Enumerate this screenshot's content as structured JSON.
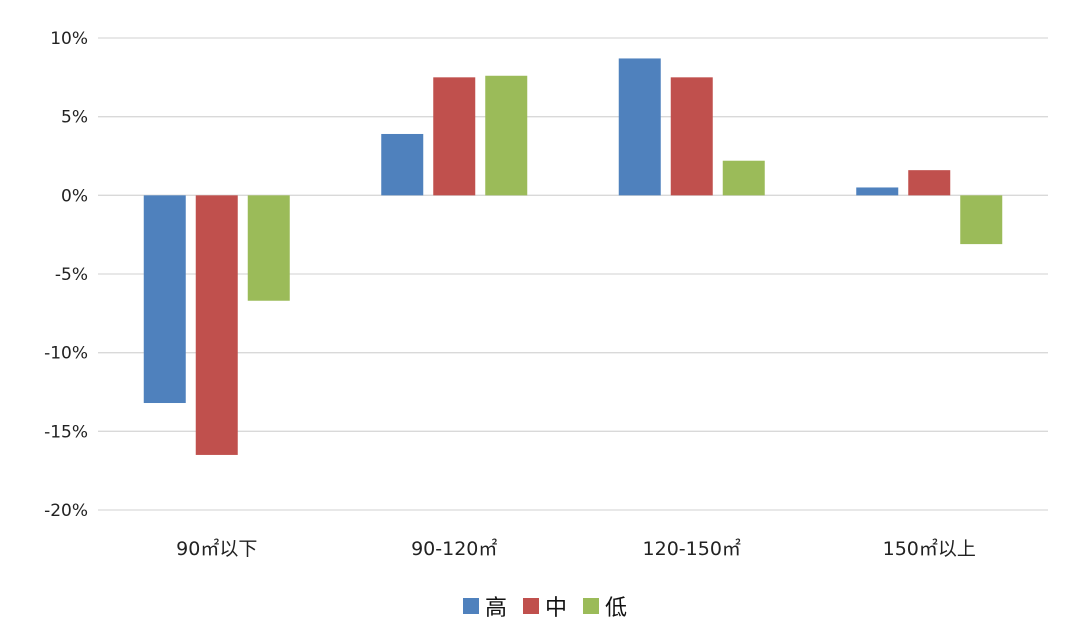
{
  "chart_data": {
    "type": "bar",
    "categories": [
      "90㎡以下",
      "90-120㎡",
      "120-150㎡",
      "150㎡以上"
    ],
    "series": [
      {
        "name": "高",
        "color": "#4f81bd",
        "values": [
          -13.2,
          3.9,
          8.7,
          0.5
        ]
      },
      {
        "name": "中",
        "color": "#c0504d",
        "values": [
          -16.5,
          7.5,
          7.5,
          1.6
        ]
      },
      {
        "name": "低",
        "color": "#9bbb59",
        "values": [
          -6.7,
          7.6,
          2.2,
          -3.1
        ]
      }
    ],
    "ylim": [
      -20,
      10
    ],
    "yticks": [
      10,
      5,
      0,
      -5,
      -10,
      -15,
      -20
    ],
    "ytick_labels": [
      "10%",
      "5%",
      "0%",
      "-5%",
      "-10%",
      "-15%",
      "-20%"
    ],
    "grid": true,
    "legend_position": "bottom",
    "title": "",
    "xlabel": "",
    "ylabel": ""
  }
}
